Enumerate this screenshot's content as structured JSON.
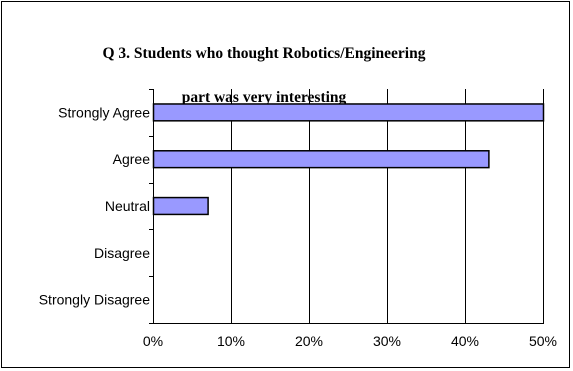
{
  "chart_data": {
    "type": "bar",
    "orientation": "horizontal",
    "title": "Q 3. Students who thought Robotics/Engineering part was very interesting",
    "title_lines": [
      "Q 3. Students who thought Robotics/Engineering",
      "part was very interesting"
    ],
    "categories": [
      "Strongly Agree",
      "Agree",
      "Neutral",
      "Disagree",
      "Strongly Disagree"
    ],
    "values": [
      50,
      43,
      7,
      0,
      0
    ],
    "value_unit": "%",
    "xlim": [
      0,
      50
    ],
    "xticks": [
      "0%",
      "10%",
      "20%",
      "30%",
      "40%",
      "50%"
    ],
    "xlabel": "",
    "ylabel": "",
    "grid": "vertical",
    "legend": "none",
    "colors": {
      "bar_fill": "#9999ff",
      "bar_stroke": "#000000",
      "grid": "#000000"
    }
  }
}
